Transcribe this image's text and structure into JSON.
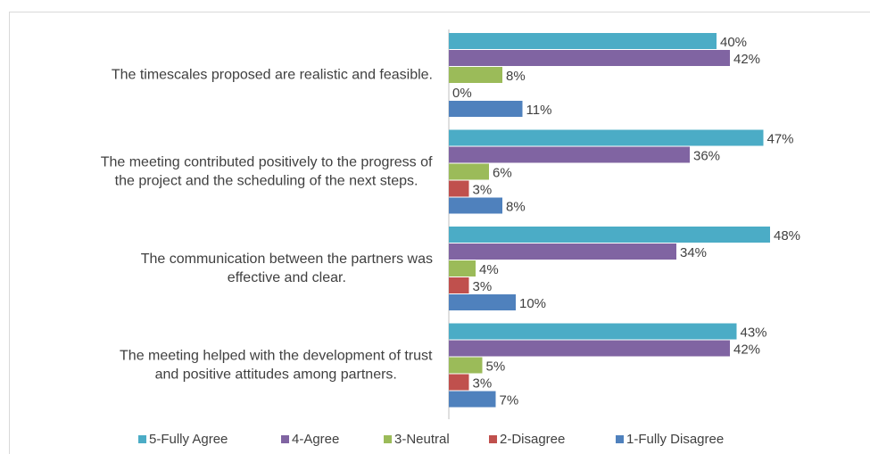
{
  "chart_data": {
    "type": "bar",
    "orientation": "horizontal",
    "categories": [
      "The timescales proposed are realistic and feasible.",
      "The meeting contributed positively to the progress of\nthe project and the scheduling of the next steps.",
      "The communication between the partners was\neffective and clear.",
      "The meeting helped with the development of trust\nand positive attitudes among partners."
    ],
    "series": [
      {
        "name": "5-Fully Agree",
        "color": "#4bacc6",
        "values": [
          40,
          47,
          48,
          43
        ],
        "value_labels": [
          "40%",
          "47%",
          "48%",
          "43%"
        ]
      },
      {
        "name": "4-Agree",
        "color": "#8064a2",
        "values": [
          42,
          36,
          34,
          42
        ],
        "value_labels": [
          "42%",
          "36%",
          "34%",
          "42%"
        ]
      },
      {
        "name": "3-Neutral",
        "color": "#9bbb59",
        "values": [
          8,
          6,
          4,
          5
        ],
        "value_labels": [
          "8%",
          "6%",
          "4%",
          "5%"
        ]
      },
      {
        "name": "2-Disagree",
        "color": "#c0504d",
        "values": [
          0,
          3,
          3,
          3
        ],
        "value_labels": [
          "0%",
          "3%",
          "3%",
          "3%"
        ]
      },
      {
        "name": "1-Fully Disagree",
        "color": "#4f81bd",
        "values": [
          11,
          8,
          10,
          7
        ],
        "value_labels": [
          "11%",
          "8%",
          "10%",
          "7%"
        ]
      }
    ],
    "legend": "bottom"
  }
}
